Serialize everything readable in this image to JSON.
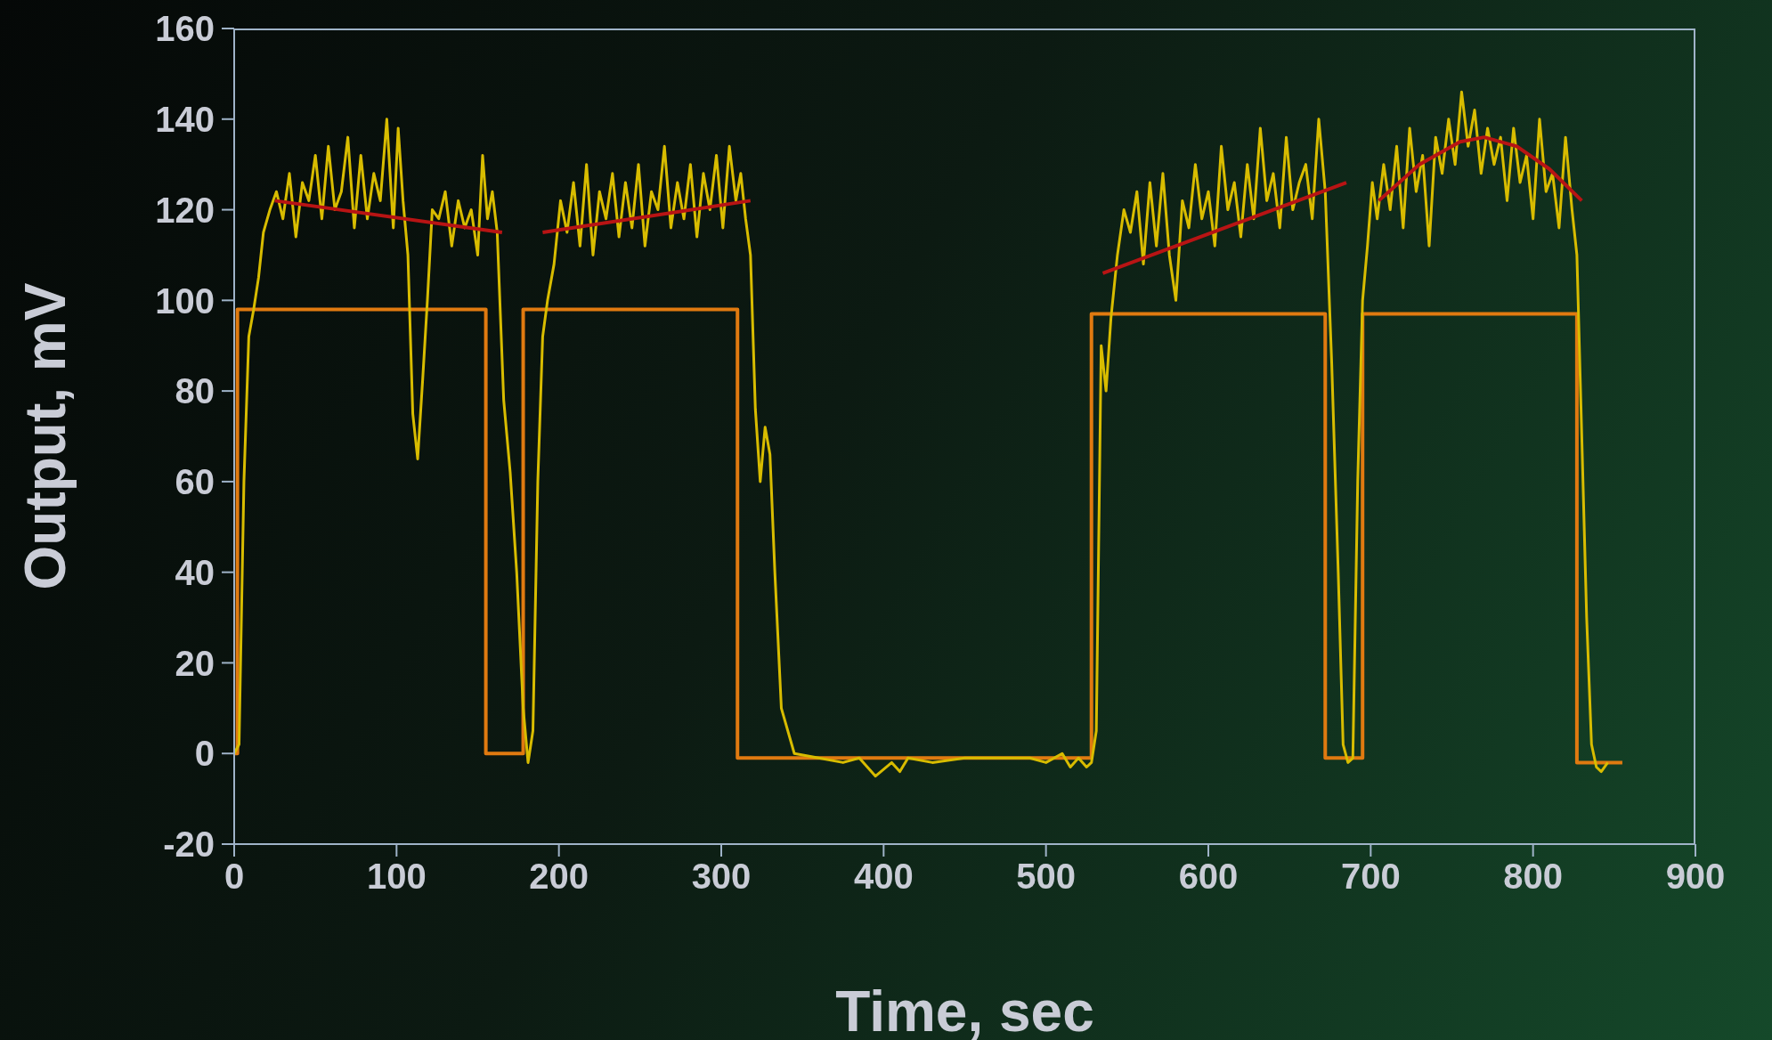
{
  "chart_data": {
    "type": "line",
    "xlabel": "Time, sec",
    "ylabel": "Output, mV",
    "xlim": [
      0,
      900
    ],
    "ylim": [
      -20,
      160
    ],
    "xticks": [
      0,
      100,
      200,
      300,
      400,
      500,
      600,
      700,
      800,
      900
    ],
    "yticks": [
      -20,
      0,
      20,
      40,
      60,
      80,
      100,
      120,
      140,
      160
    ],
    "marker": "none",
    "line_style": "solid",
    "series": [
      {
        "color": "#e07a10",
        "x": [
          0,
          2,
          2,
          155,
          155,
          178,
          178,
          310,
          310,
          528,
          528,
          672,
          672,
          695,
          695,
          827,
          827,
          855
        ],
        "values": [
          0,
          0,
          98,
          98,
          0,
          0,
          98,
          98,
          -1,
          -1,
          97,
          97,
          -1,
          -1,
          97,
          97,
          -2,
          -2
        ]
      },
      {
        "color": "#d8bc00",
        "x": [
          0,
          3,
          6,
          9,
          12,
          15,
          18,
          22,
          26,
          30,
          34,
          38,
          42,
          46,
          50,
          54,
          58,
          62,
          66,
          70,
          74,
          78,
          82,
          86,
          90,
          94,
          98,
          101,
          104,
          107,
          110,
          113,
          116,
          119,
          122,
          126,
          130,
          134,
          138,
          142,
          146,
          150,
          153,
          156,
          159,
          162,
          166,
          170,
          174,
          178,
          181,
          184,
          187,
          190,
          193,
          197,
          201,
          205,
          209,
          213,
          217,
          221,
          225,
          229,
          233,
          237,
          241,
          245,
          249,
          253,
          257,
          261,
          265,
          269,
          273,
          277,
          281,
          285,
          289,
          293,
          297,
          301,
          305,
          309,
          312,
          315,
          318,
          321,
          324,
          327,
          330,
          333,
          337,
          345,
          360,
          375,
          385,
          390,
          395,
          405,
          410,
          415,
          430,
          450,
          470,
          490,
          500,
          510,
          515,
          520,
          525,
          528,
          531,
          534,
          537,
          540,
          544,
          548,
          552,
          556,
          560,
          564,
          568,
          572,
          576,
          580,
          584,
          588,
          592,
          596,
          600,
          604,
          608,
          612,
          616,
          620,
          624,
          628,
          632,
          636,
          640,
          644,
          648,
          652,
          656,
          660,
          664,
          668,
          672,
          676,
          680,
          683,
          686,
          689,
          692,
          695,
          698,
          701,
          704,
          708,
          712,
          716,
          720,
          724,
          728,
          732,
          736,
          740,
          744,
          748,
          752,
          756,
          760,
          764,
          768,
          772,
          776,
          780,
          784,
          788,
          792,
          796,
          800,
          804,
          808,
          812,
          816,
          820,
          824,
          827,
          830,
          833,
          836,
          839,
          842,
          846
        ],
        "values": [
          0,
          2,
          60,
          92,
          98,
          105,
          115,
          120,
          124,
          118,
          128,
          114,
          126,
          122,
          132,
          118,
          134,
          120,
          124,
          136,
          116,
          132,
          118,
          128,
          122,
          140,
          116,
          138,
          122,
          110,
          75,
          65,
          82,
          100,
          120,
          118,
          124,
          112,
          122,
          116,
          120,
          110,
          132,
          118,
          124,
          115,
          78,
          62,
          40,
          10,
          -2,
          5,
          60,
          92,
          100,
          108,
          122,
          115,
          126,
          112,
          130,
          110,
          124,
          118,
          128,
          114,
          126,
          116,
          130,
          112,
          124,
          120,
          134,
          116,
          126,
          118,
          130,
          114,
          128,
          120,
          132,
          116,
          134,
          122,
          128,
          118,
          110,
          76,
          60,
          72,
          66,
          40,
          10,
          0,
          -1,
          -2,
          -1,
          -3,
          -5,
          -2,
          -4,
          -1,
          -2,
          -1,
          -1,
          -1,
          -2,
          0,
          -3,
          -1,
          -3,
          -2,
          5,
          90,
          80,
          96,
          110,
          120,
          115,
          124,
          108,
          126,
          112,
          128,
          110,
          100,
          122,
          116,
          130,
          118,
          124,
          112,
          134,
          120,
          126,
          114,
          130,
          118,
          138,
          122,
          128,
          116,
          136,
          120,
          126,
          130,
          118,
          140,
          124,
          86,
          40,
          2,
          -2,
          -1,
          60,
          100,
          112,
          126,
          118,
          130,
          120,
          134,
          116,
          138,
          124,
          132,
          112,
          136,
          128,
          140,
          130,
          146,
          134,
          142,
          128,
          138,
          130,
          136,
          122,
          138,
          126,
          132,
          118,
          140,
          124,
          128,
          116,
          136,
          120,
          110,
          70,
          30,
          2,
          -3,
          -4,
          -2
        ]
      },
      {
        "color": "#b81414",
        "x": [
          25,
          165,
          166,
          190,
          318,
          319,
          535,
          685,
          686,
          705,
          730,
          755,
          770,
          790,
          810,
          830
        ],
        "values": [
          122,
          115,
          null,
          115,
          122,
          null,
          106,
          126,
          null,
          122,
          130,
          135,
          136,
          134,
          129,
          122
        ]
      }
    ]
  }
}
